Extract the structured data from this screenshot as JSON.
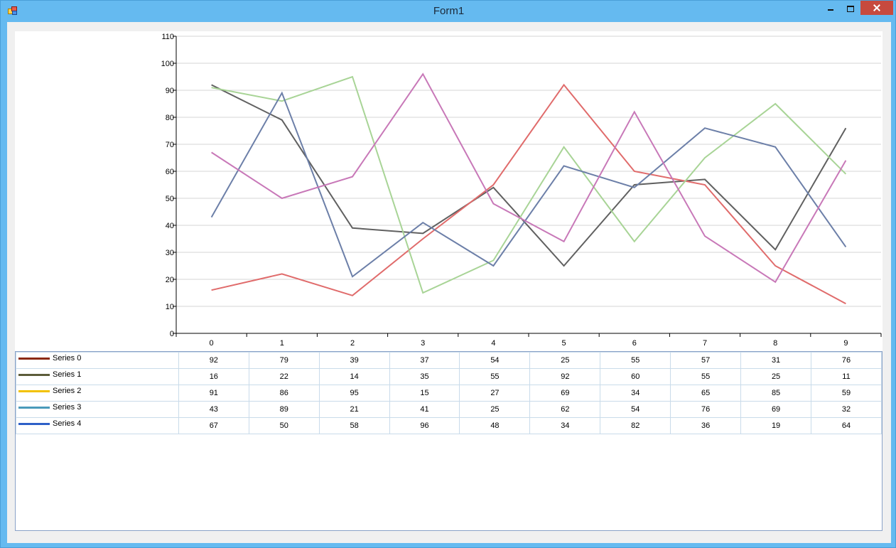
{
  "window": {
    "title": "Form1"
  },
  "chart_data": {
    "type": "line",
    "x": [
      0,
      1,
      2,
      3,
      4,
      5,
      6,
      7,
      8,
      9
    ],
    "ylim": [
      0,
      110
    ],
    "yticks": [
      0,
      10,
      20,
      30,
      40,
      50,
      60,
      70,
      80,
      90,
      100,
      110
    ],
    "grid": true,
    "legend": "table-bottom",
    "series": [
      {
        "name": "Series 0",
        "line_color": "#606060",
        "legend_color": "#8b2a10",
        "values": [
          92,
          79,
          39,
          37,
          54,
          25,
          55,
          57,
          31,
          76
        ]
      },
      {
        "name": "Series 1",
        "line_color": "#e06b6b",
        "legend_color": "#5c5c3a",
        "values": [
          16,
          22,
          14,
          35,
          55,
          92,
          60,
          55,
          25,
          11
        ]
      },
      {
        "name": "Series 2",
        "line_color": "#a8d496",
        "legend_color": "#f2c200",
        "values": [
          91,
          86,
          95,
          15,
          27,
          69,
          34,
          65,
          85,
          59
        ]
      },
      {
        "name": "Series 3",
        "line_color": "#6c7fa8",
        "legend_color": "#4a9aba",
        "values": [
          43,
          89,
          21,
          41,
          25,
          62,
          54,
          76,
          69,
          32
        ]
      },
      {
        "name": "Series 4",
        "line_color": "#c878b8",
        "legend_color": "#2e60c8",
        "values": [
          67,
          50,
          58,
          96,
          48,
          34,
          82,
          36,
          19,
          64
        ]
      }
    ]
  }
}
